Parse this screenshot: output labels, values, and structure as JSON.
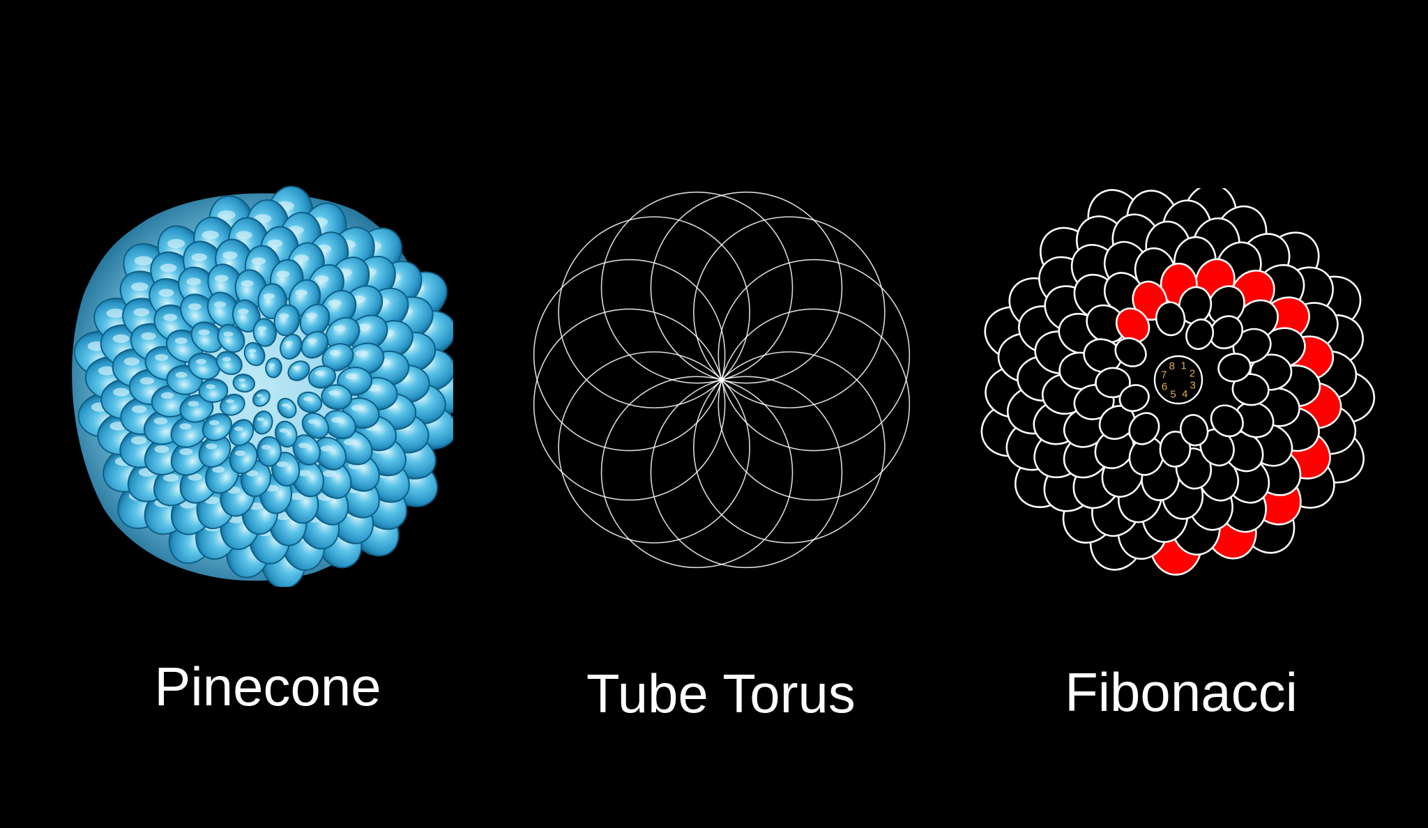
{
  "background_color": "#000000",
  "panels": [
    {
      "caption": "Pinecone",
      "art_icon": "pinecone-scales-illustration",
      "colors": {
        "scale_fill": "#3aa9d6",
        "scale_dark": "#0d5f86",
        "highlight": "#cfeff8"
      }
    },
    {
      "caption": "Tube Torus",
      "art_icon": "tube-torus-circles-line-drawing",
      "colors": {
        "stroke": "#ffffff"
      }
    },
    {
      "caption": "Fibonacci",
      "art_icon": "fibonacci-spiral-scales-drawing",
      "colors": {
        "outline": "#ffffff",
        "spiral_fill": "#ff0000",
        "numbers": "#e0b341"
      },
      "center_numbers": [
        "1",
        "2",
        "3",
        "4",
        "5",
        "6",
        "7",
        "8"
      ]
    }
  ]
}
